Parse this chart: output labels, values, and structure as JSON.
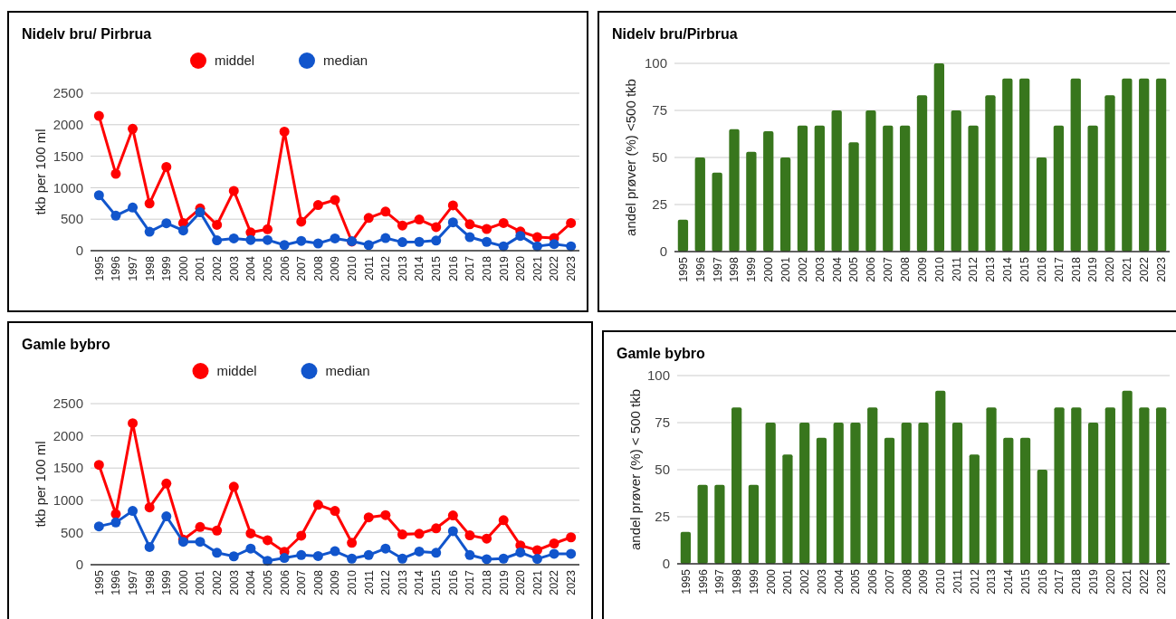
{
  "chart_data": [
    {
      "type": "line",
      "title": "Nidelv bru/ Pirbrua",
      "ylabel": "tkb per 100 ml",
      "legend": "top",
      "marker": "circle",
      "grid": "y",
      "ylim": [
        0,
        2500
      ],
      "yticks": [
        0,
        500,
        1000,
        1500,
        2000,
        2500
      ],
      "categories": [
        "1995",
        "1996",
        "1997",
        "1998",
        "1999",
        "2000",
        "2001",
        "2002",
        "2003",
        "2004",
        "2005",
        "2006",
        "2007",
        "2008",
        "2009",
        "2010",
        "2011",
        "2012",
        "2013",
        "2014",
        "2015",
        "2016",
        "2017",
        "2018",
        "2019",
        "2020",
        "2021",
        "2022",
        "2023"
      ],
      "series": [
        {
          "name": "middel",
          "color": "#ff0000",
          "values": [
            2140,
            1220,
            1935,
            750,
            1330,
            440,
            670,
            410,
            950,
            290,
            340,
            1890,
            460,
            725,
            805,
            145,
            520,
            620,
            400,
            495,
            375,
            720,
            420,
            345,
            440,
            305,
            215,
            200,
            440
          ]
        },
        {
          "name": "median",
          "color": "#1155cc",
          "values": [
            880,
            555,
            685,
            300,
            435,
            320,
            610,
            165,
            195,
            170,
            170,
            90,
            155,
            115,
            195,
            150,
            90,
            200,
            135,
            140,
            160,
            450,
            215,
            140,
            70,
            235,
            70,
            105,
            70
          ]
        }
      ]
    },
    {
      "type": "bar",
      "title": "Nidelv bru/Pirbrua",
      "ylabel": "andel prøver (%) <500 tkb",
      "grid": "y",
      "ylim": [
        0,
        100
      ],
      "yticks": [
        0,
        25,
        50,
        75,
        100
      ],
      "categories": [
        "1995",
        "1996",
        "1997",
        "1998",
        "1999",
        "2000",
        "2001",
        "2002",
        "2003",
        "2004",
        "2005",
        "2006",
        "2007",
        "2008",
        "2009",
        "2010",
        "2011",
        "2012",
        "2013",
        "2014",
        "2015",
        "2016",
        "2017",
        "2018",
        "2019",
        "2020",
        "2021",
        "2022",
        "2023"
      ],
      "series": [
        {
          "color": "#38761d",
          "values": [
            17,
            50,
            42,
            65,
            53,
            64,
            50,
            67,
            67,
            75,
            58,
            75,
            67,
            67,
            83,
            100,
            75,
            67,
            83,
            92,
            92,
            50,
            67,
            92,
            67,
            83,
            92,
            92,
            92
          ]
        }
      ]
    },
    {
      "type": "line",
      "title": "Gamle bybro",
      "ylabel": "tkb per 100 ml",
      "legend": "top",
      "marker": "circle",
      "grid": "y",
      "ylim": [
        0,
        2500
      ],
      "yticks": [
        0,
        500,
        1000,
        1500,
        2000,
        2500
      ],
      "categories": [
        "1995",
        "1996",
        "1997",
        "1998",
        "1999",
        "2000",
        "2001",
        "2002",
        "2003",
        "2004",
        "2005",
        "2006",
        "2007",
        "2008",
        "2009",
        "2010",
        "2011",
        "2012",
        "2013",
        "2014",
        "2015",
        "2016",
        "2017",
        "2018",
        "2019",
        "2020",
        "2021",
        "2022",
        "2023"
      ],
      "series": [
        {
          "name": "middel",
          "color": "#ff0000",
          "values": [
            1550,
            785,
            2195,
            890,
            1260,
            390,
            585,
            530,
            1210,
            485,
            380,
            200,
            450,
            930,
            835,
            340,
            735,
            770,
            470,
            480,
            565,
            765,
            455,
            405,
            690,
            300,
            225,
            330,
            425
          ]
        },
        {
          "name": "median",
          "color": "#1155cc",
          "values": [
            595,
            655,
            835,
            275,
            750,
            355,
            355,
            185,
            130,
            250,
            60,
            105,
            150,
            135,
            210,
            95,
            150,
            250,
            95,
            205,
            185,
            520,
            150,
            85,
            95,
            190,
            90,
            170,
            170
          ]
        }
      ]
    },
    {
      "type": "bar",
      "title": "Gamle bybro",
      "ylabel": "andel prøver (%) < 500 tkb",
      "grid": "y",
      "ylim": [
        0,
        100
      ],
      "yticks": [
        0,
        25,
        50,
        75,
        100
      ],
      "categories": [
        "1995",
        "1996",
        "1997",
        "1998",
        "1999",
        "2000",
        "2001",
        "2002",
        "2003",
        "2004",
        "2005",
        "2006",
        "2007",
        "2008",
        "2009",
        "2010",
        "2011",
        "2012",
        "2013",
        "2014",
        "2015",
        "2016",
        "2017",
        "2018",
        "2019",
        "2020",
        "2021",
        "2022",
        "2023"
      ],
      "series": [
        {
          "color": "#38761d",
          "values": [
            17,
            42,
            42,
            83,
            42,
            75,
            58,
            75,
            67,
            75,
            75,
            83,
            67,
            75,
            75,
            92,
            75,
            58,
            83,
            67,
            67,
            50,
            83,
            83,
            75,
            83,
            92,
            83,
            83
          ]
        }
      ]
    }
  ]
}
